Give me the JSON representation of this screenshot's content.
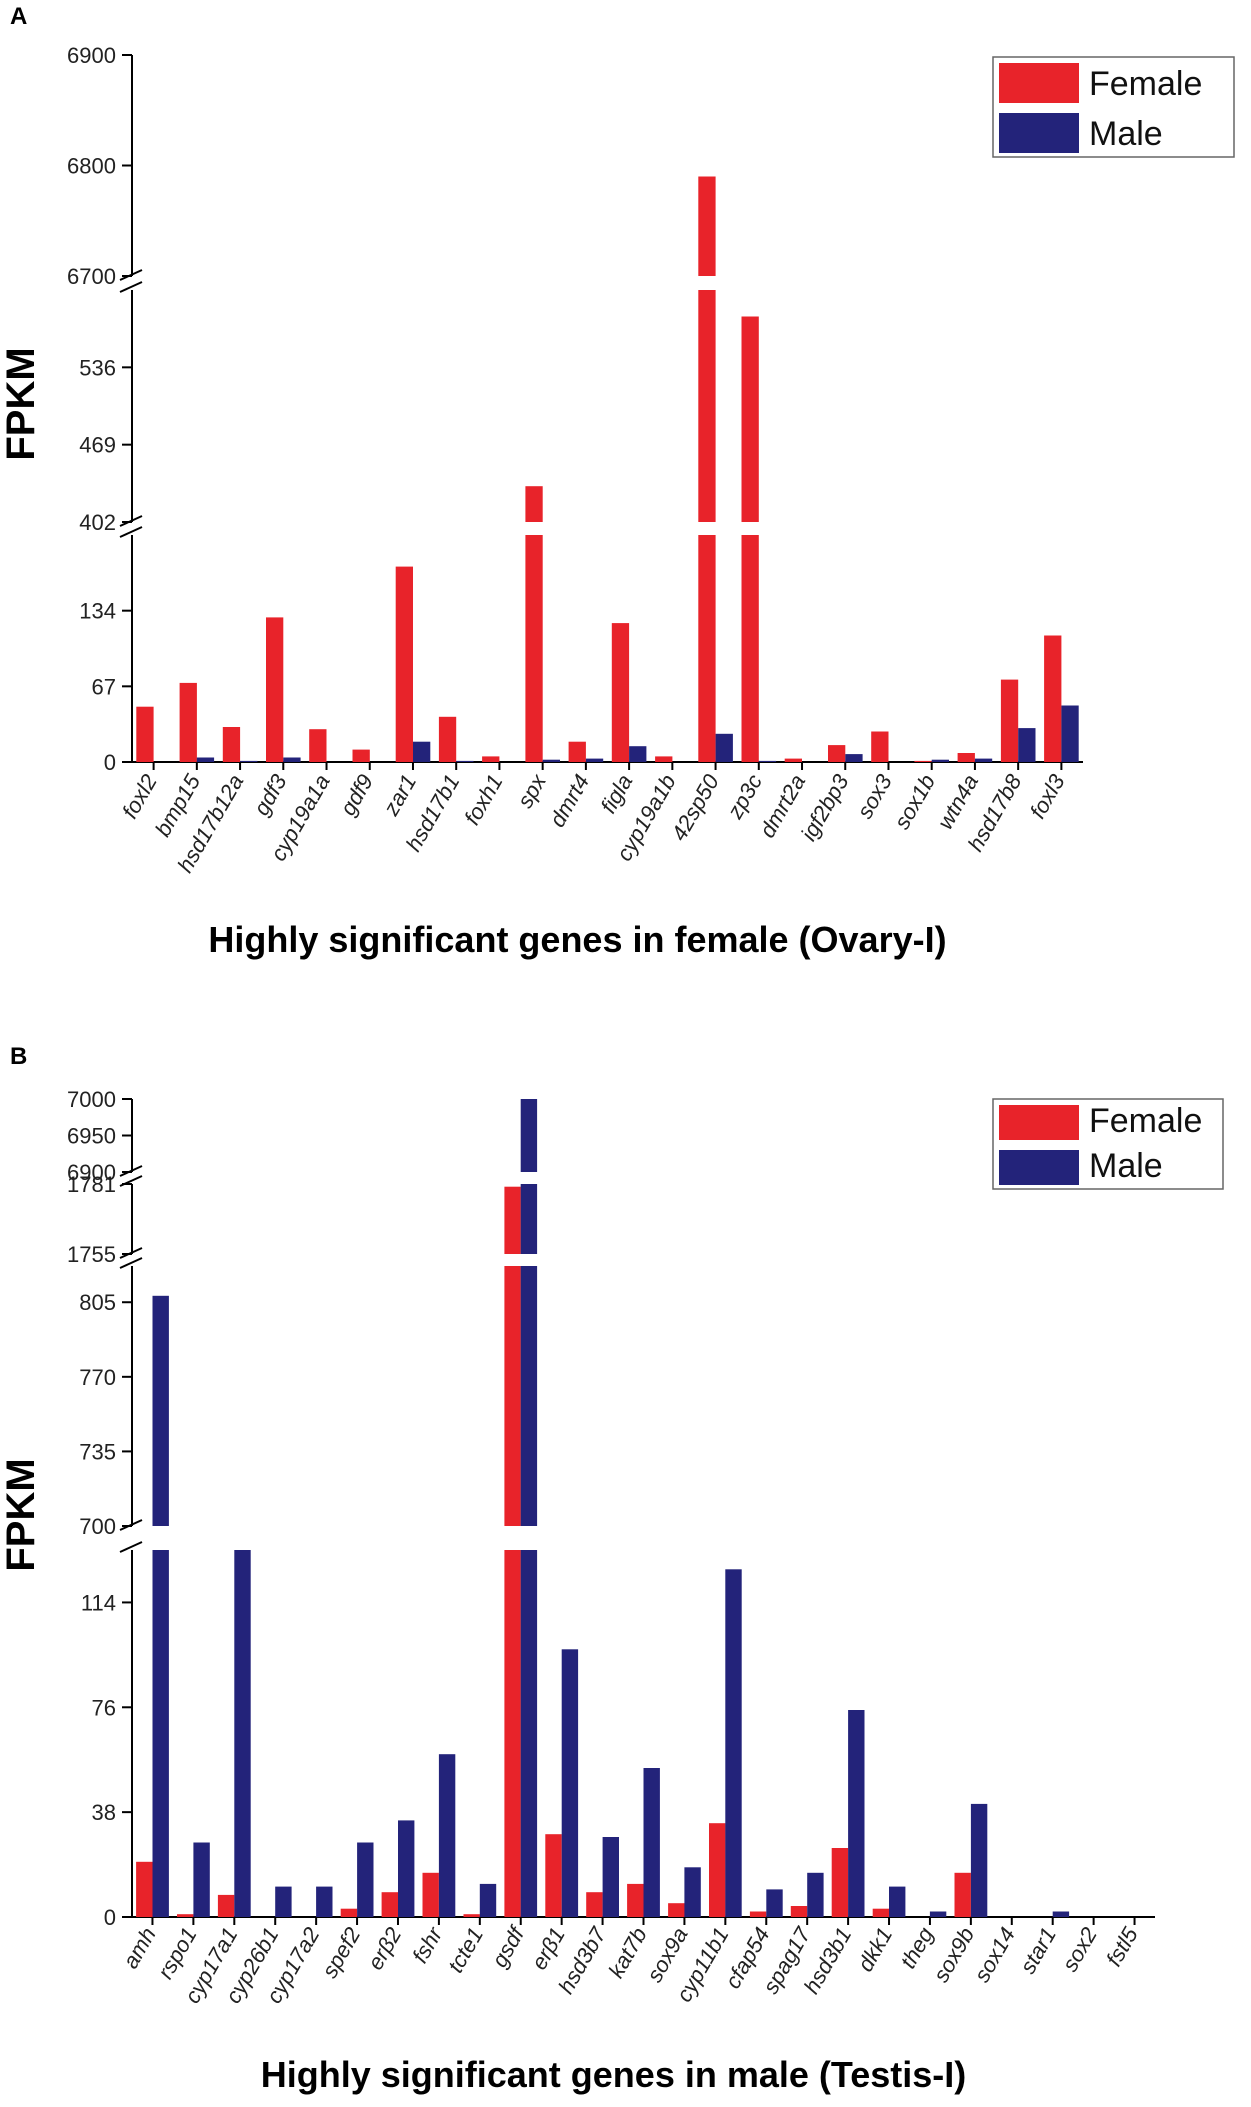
{
  "chart_data": [
    {
      "type": "bar",
      "panel": "A",
      "ylabel": "FPKM",
      "xlabel": "Highly significant genes in female (Ovary-I)",
      "legend": [
        "Female",
        "Male"
      ],
      "legend_position": "top-right",
      "colors": {
        "female": "#e8232a",
        "male": "#23237a"
      },
      "y_segments": [
        {
          "range": [
            0,
            201
          ],
          "ticks": [
            0,
            67,
            134
          ],
          "top_tick": false
        },
        {
          "range": [
            402,
            603
          ],
          "ticks": [
            402,
            469,
            536
          ],
          "top_tick": false
        },
        {
          "range": [
            6700,
            6900
          ],
          "ticks": [
            6700,
            6800,
            6900
          ],
          "top_tick": true
        }
      ],
      "categories": [
        "foxl2",
        "bmp15",
        "hsd17b12a",
        "gdf3",
        "cyp19a1a",
        "gdf9",
        "zar1",
        "hsd17b1",
        "foxh1",
        "spx",
        "dmrt4",
        "figla",
        "cyp19a1b",
        "42sp50",
        "zp3c",
        "dmrt2a",
        "igf2bp3",
        "sox3",
        "sox1b",
        "wtn4a",
        "hsd17b8",
        "foxl3"
      ],
      "series": [
        {
          "name": "Female",
          "values": [
            49,
            70,
            31,
            128,
            29,
            11,
            173,
            40,
            5,
            433,
            18,
            123,
            5,
            6790,
            580,
            3,
            15,
            27,
            1,
            8,
            73,
            112
          ]
        },
        {
          "name": "Male",
          "values": [
            0,
            4,
            1,
            4,
            0,
            0,
            18,
            1,
            0,
            2,
            3,
            14,
            0,
            25,
            1,
            0,
            7,
            0,
            2,
            3,
            30,
            50
          ]
        }
      ]
    },
    {
      "type": "bar",
      "panel": "B",
      "ylabel": "FPKM",
      "xlabel": "Highly significant genes in male (Testis-I)",
      "legend": [
        "Female",
        "Male"
      ],
      "legend_position": "top-right",
      "colors": {
        "female": "#e8232a",
        "male": "#23237a"
      },
      "y_segments": [
        {
          "range": [
            0,
            133
          ],
          "ticks": [
            0,
            38,
            76,
            114
          ],
          "top_tick": false
        },
        {
          "range": [
            700,
            822
          ],
          "ticks": [
            700,
            735,
            770,
            805
          ],
          "top_tick": false
        },
        {
          "range": [
            1755,
            1781
          ],
          "ticks": [
            1755,
            1781
          ],
          "top_tick": false
        },
        {
          "range": [
            6900,
            7000
          ],
          "ticks": [
            6900,
            6950,
            7000
          ],
          "top_tick": true
        }
      ],
      "categories": [
        "amh",
        "rspo1",
        "cyp17a1",
        "cyp26b1",
        "cyp17a2",
        "spef2",
        "erβ2",
        "fshr",
        "tcte1",
        "gsdf",
        "erβ1",
        "hsd3b7",
        "kat7b",
        "sox9a",
        "cyp11b1",
        "cfap54",
        "spag17",
        "hsd3b1",
        "dkk1",
        "theg",
        "sox9b",
        "sox14",
        "star1",
        "sox2",
        "fstl5"
      ],
      "series": [
        {
          "name": "Female",
          "values": [
            20,
            1,
            8,
            0,
            0,
            3,
            9,
            16,
            1,
            1780,
            30,
            9,
            12,
            5,
            34,
            2,
            4,
            25,
            3,
            0,
            16,
            0,
            0,
            0,
            0
          ]
        },
        {
          "name": "Male",
          "values": [
            808,
            27,
            140,
            11,
            11,
            27,
            35,
            59,
            12,
            7000,
            97,
            29,
            54,
            18,
            126,
            10,
            16,
            75,
            11,
            2,
            41,
            0,
            2,
            0,
            0
          ]
        }
      ]
    }
  ]
}
